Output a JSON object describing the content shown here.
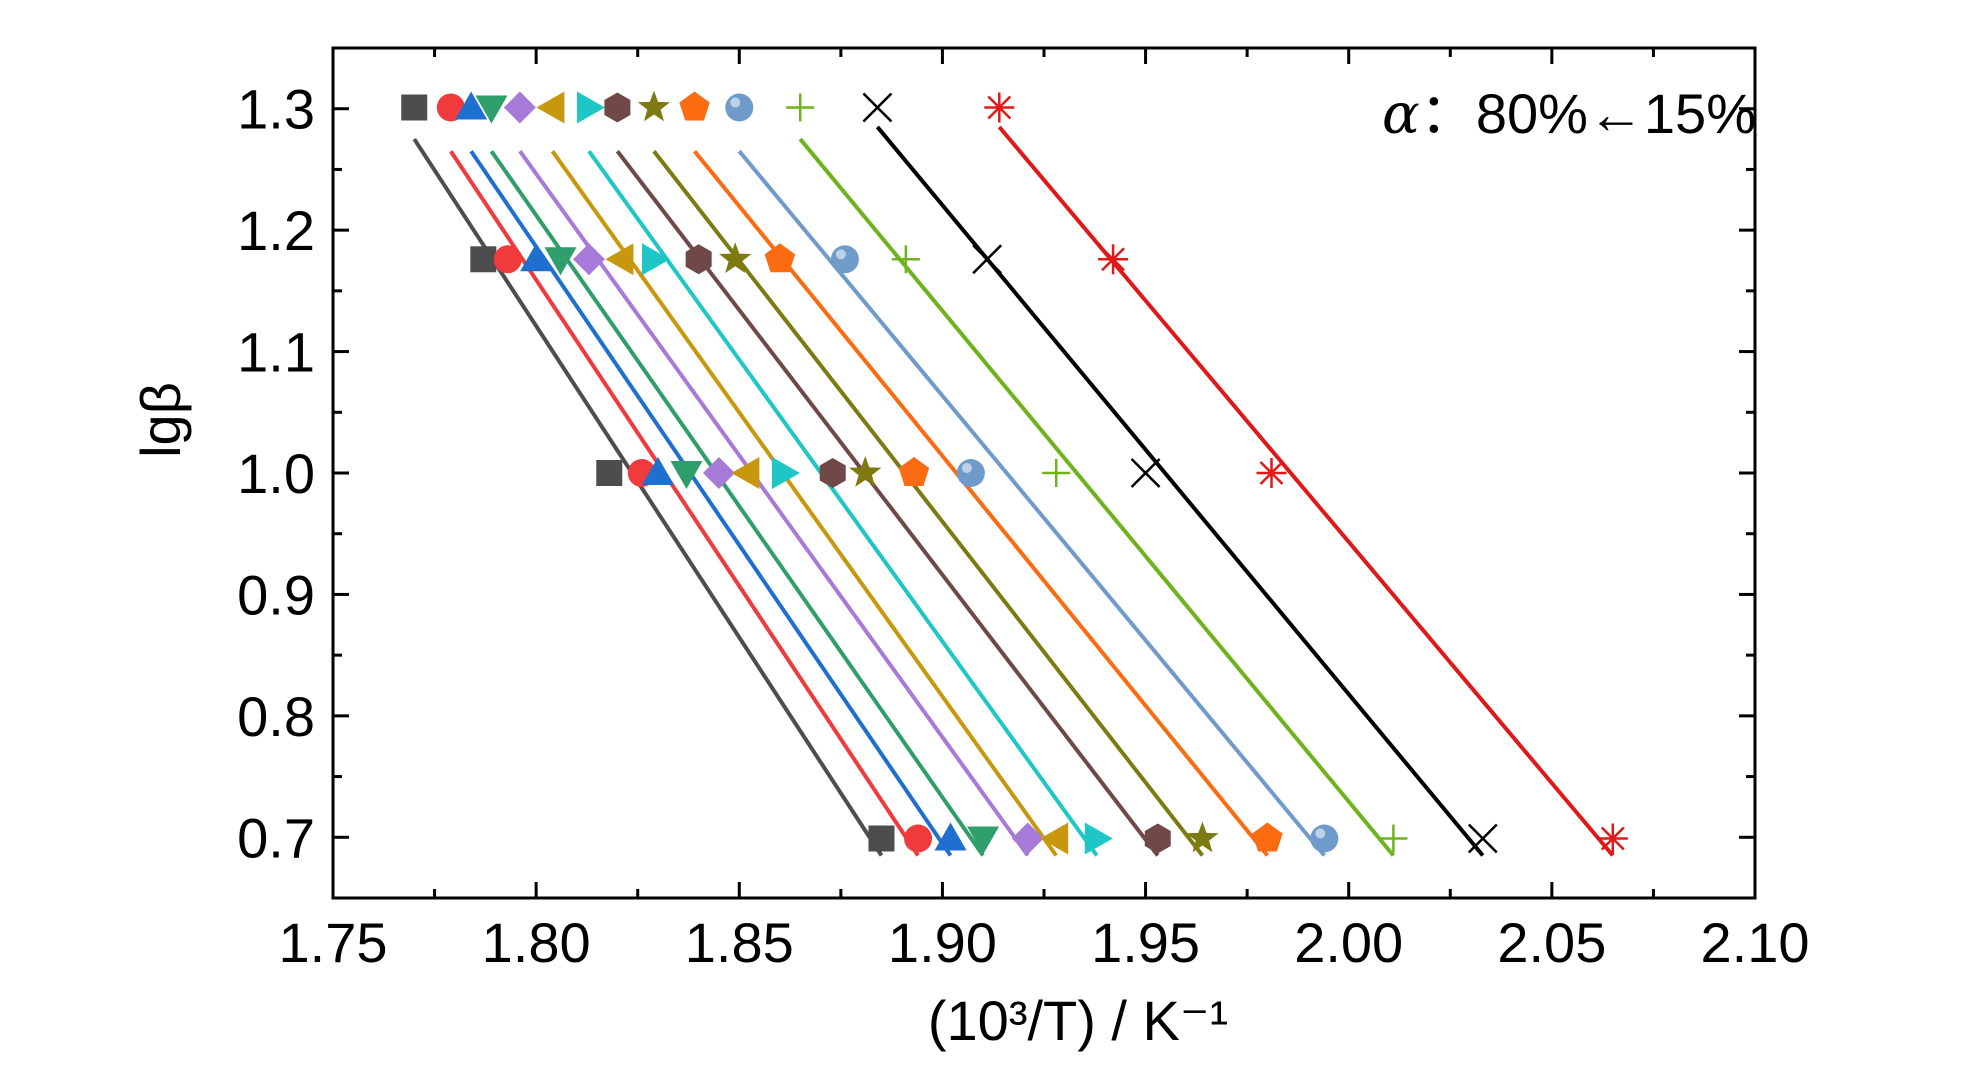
{
  "chart_data": {
    "type": "scatter",
    "xlabel": "(10³/T) / K⁻¹",
    "ylabel": "lgβ",
    "xlim": [
      1.75,
      2.1
    ],
    "ylim": [
      0.65,
      1.35
    ],
    "x_ticks": [
      "1.75",
      "1.80",
      "1.85",
      "1.90",
      "1.95",
      "2.00",
      "2.05",
      "2.10"
    ],
    "y_ticks": [
      "0.7",
      "0.8",
      "0.9",
      "1.0",
      "1.1",
      "1.2",
      "1.3"
    ],
    "annotation": {
      "symbol": "α",
      "text": "：80%←15%"
    },
    "y_levels": [
      1.301,
      1.176,
      1.0,
      0.699
    ],
    "series": [
      {
        "marker": "square",
        "color": "#4d4d4d",
        "x": [
          1.77,
          1.787,
          1.818,
          1.885
        ],
        "fit": [
          [
            1.77,
            1.275
          ],
          [
            1.885,
            0.685
          ]
        ]
      },
      {
        "marker": "circle",
        "color": "#ef3b3b",
        "x": [
          1.779,
          1.793,
          1.826,
          1.894
        ],
        "fit": [
          [
            1.779,
            1.265
          ],
          [
            1.894,
            0.685
          ]
        ]
      },
      {
        "marker": "triangle-up",
        "color": "#1f6fd1",
        "x": [
          1.784,
          1.8,
          1.83,
          1.902
        ],
        "fit": [
          [
            1.784,
            1.265
          ],
          [
            1.902,
            0.685
          ]
        ]
      },
      {
        "marker": "triangle-down",
        "color": "#2e9e6a",
        "x": [
          1.789,
          1.806,
          1.837,
          1.91
        ],
        "fit": [
          [
            1.789,
            1.265
          ],
          [
            1.91,
            0.685
          ]
        ]
      },
      {
        "marker": "diamond",
        "color": "#a77ad9",
        "x": [
          1.796,
          1.813,
          1.845,
          1.921
        ],
        "fit": [
          [
            1.796,
            1.265
          ],
          [
            1.921,
            0.685
          ]
        ]
      },
      {
        "marker": "triangle-left",
        "color": "#c9970e",
        "x": [
          1.804,
          1.821,
          1.852,
          1.928
        ],
        "fit": [
          [
            1.804,
            1.265
          ],
          [
            1.928,
            0.685
          ]
        ]
      },
      {
        "marker": "triangle-right",
        "color": "#1fc6c6",
        "x": [
          1.813,
          1.829,
          1.861,
          1.938
        ],
        "fit": [
          [
            1.813,
            1.265
          ],
          [
            1.938,
            0.685
          ]
        ]
      },
      {
        "marker": "hexagon",
        "color": "#704848",
        "x": [
          1.82,
          1.84,
          1.873,
          1.953
        ],
        "fit": [
          [
            1.82,
            1.265
          ],
          [
            1.953,
            0.685
          ]
        ]
      },
      {
        "marker": "star",
        "color": "#7e7a12",
        "x": [
          1.829,
          1.849,
          1.881,
          1.964
        ],
        "fit": [
          [
            1.829,
            1.265
          ],
          [
            1.964,
            0.685
          ]
        ]
      },
      {
        "marker": "pentagon",
        "color": "#fb6b12",
        "x": [
          1.839,
          1.86,
          1.893,
          1.98
        ],
        "fit": [
          [
            1.839,
            1.265
          ],
          [
            1.98,
            0.685
          ]
        ]
      },
      {
        "marker": "sphere",
        "color": "#6f9bcb",
        "x": [
          1.85,
          1.876,
          1.907,
          1.994
        ],
        "fit": [
          [
            1.85,
            1.265
          ],
          [
            1.994,
            0.685
          ]
        ]
      },
      {
        "marker": "plus",
        "color": "#6fb31c",
        "x": [
          1.865,
          1.891,
          1.928,
          2.011
        ],
        "fit": [
          [
            1.865,
            1.275
          ],
          [
            2.011,
            0.685
          ]
        ]
      },
      {
        "marker": "cross",
        "color": "#000000",
        "x": [
          1.884,
          1.911,
          1.95,
          2.033
        ],
        "fit": [
          [
            1.884,
            1.285
          ],
          [
            2.033,
            0.685
          ]
        ]
      },
      {
        "marker": "asterisk",
        "color": "#e01818",
        "x": [
          1.914,
          1.942,
          1.981,
          2.065
        ],
        "fit": [
          [
            1.914,
            1.285
          ],
          [
            2.065,
            0.685
          ]
        ]
      }
    ]
  }
}
